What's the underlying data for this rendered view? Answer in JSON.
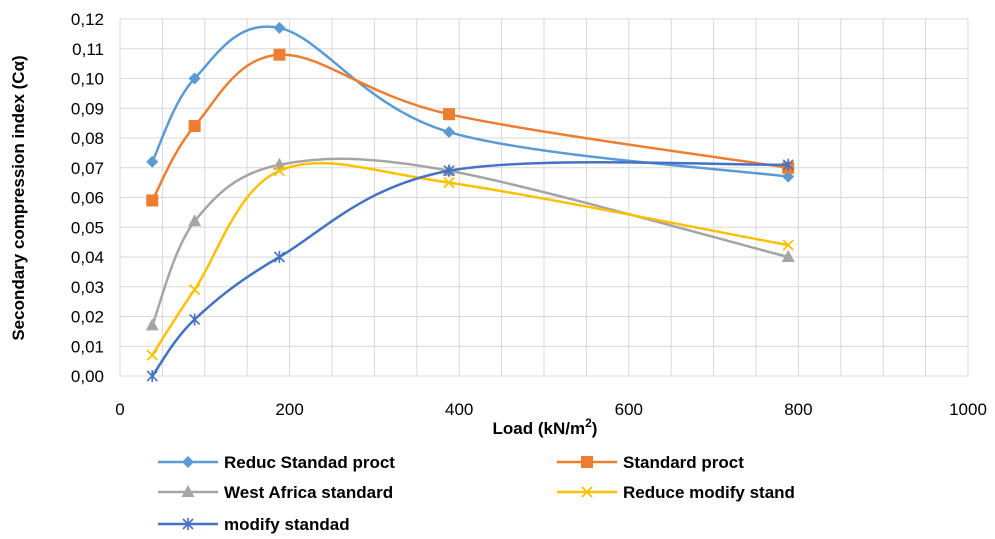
{
  "chart_data": {
    "type": "scatter",
    "title": "",
    "xlabel": "Load (kN/m",
    "xlabel_sup": "2",
    "xlabel_end": ")",
    "ylabel": "Secondary compression index (Cα)",
    "xlim": [
      0,
      1000
    ],
    "ylim": [
      0,
      0.12
    ],
    "x_ticks": [
      "0",
      "200",
      "400",
      "600",
      "800",
      "1000"
    ],
    "y_ticks": [
      "0,00",
      "0,01",
      "0,02",
      "0,03",
      "0,04",
      "0,05",
      "0,06",
      "0,07",
      "0,08",
      "0,09",
      "0,10",
      "0,11",
      "0,12"
    ],
    "grid": true,
    "legend_position": "bottom",
    "series": [
      {
        "name": "Reduc Standad proct",
        "color": "#5B9BD5",
        "marker": "diamond",
        "x": [
          38,
          88,
          188,
          388,
          788
        ],
        "y": [
          0.072,
          0.1,
          0.117,
          0.082,
          0.067
        ]
      },
      {
        "name": "Standard proct",
        "color": "#ED7D31",
        "marker": "square",
        "x": [
          38,
          88,
          188,
          388,
          788
        ],
        "y": [
          0.059,
          0.084,
          0.108,
          0.088,
          0.07
        ]
      },
      {
        "name": "West Africa standard",
        "color": "#A5A5A5",
        "marker": "triangle",
        "x": [
          38,
          88,
          188,
          388,
          788
        ],
        "y": [
          0.017,
          0.052,
          0.071,
          0.069,
          0.04
        ]
      },
      {
        "name": "Reduce modify stand",
        "color": "#FFC000",
        "marker": "x",
        "x": [
          38,
          88,
          188,
          388,
          788
        ],
        "y": [
          0.007,
          0.029,
          0.069,
          0.065,
          0.044
        ]
      },
      {
        "name": "modify standad",
        "color": "#4472C4",
        "marker": "star",
        "x": [
          38,
          88,
          188,
          388,
          788
        ],
        "y": [
          0.0,
          0.019,
          0.04,
          0.069,
          0.071
        ]
      }
    ]
  }
}
